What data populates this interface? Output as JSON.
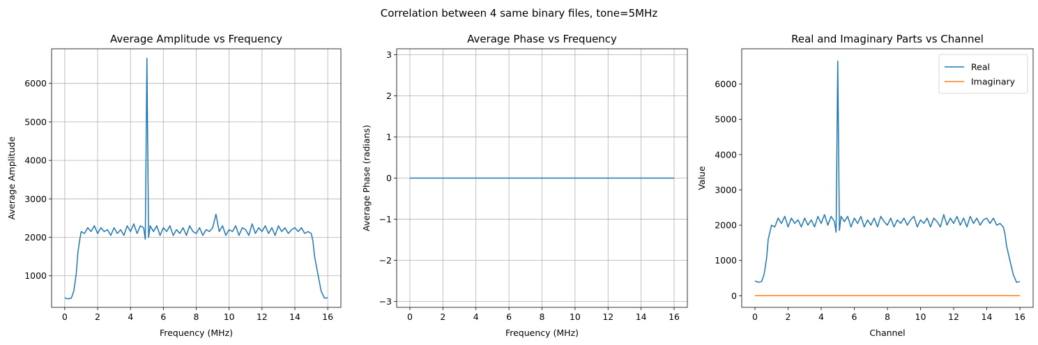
{
  "suptitle": "Correlation between 4 same binary files, tone=5MHz",
  "chart_data": [
    {
      "type": "line",
      "title": "Average Amplitude vs Frequency",
      "xlabel": "Frequency (MHz)",
      "ylabel": "Average Amplitude",
      "xlim": [
        -0.8,
        16.8
      ],
      "ylim": [
        180,
        6900
      ],
      "xticks": [
        0,
        2,
        4,
        6,
        8,
        10,
        12,
        14,
        16
      ],
      "yticks": [
        1000,
        2000,
        3000,
        4000,
        5000,
        6000
      ],
      "grid": true,
      "series": [
        {
          "color": "#1f77b4",
          "x": [
            0.0,
            0.2,
            0.4,
            0.55,
            0.7,
            0.8,
            0.9,
            1.0,
            1.2,
            1.4,
            1.6,
            1.8,
            2.0,
            2.2,
            2.4,
            2.6,
            2.8,
            3.0,
            3.2,
            3.4,
            3.6,
            3.8,
            4.0,
            4.2,
            4.4,
            4.6,
            4.8,
            4.9,
            5.0,
            5.1,
            5.2,
            5.4,
            5.6,
            5.8,
            6.0,
            6.2,
            6.4,
            6.6,
            6.8,
            7.0,
            7.2,
            7.4,
            7.6,
            7.8,
            8.0,
            8.2,
            8.4,
            8.6,
            8.8,
            9.0,
            9.2,
            9.4,
            9.6,
            9.8,
            10.0,
            10.2,
            10.4,
            10.6,
            10.8,
            11.0,
            11.2,
            11.4,
            11.6,
            11.8,
            12.0,
            12.2,
            12.4,
            12.6,
            12.8,
            13.0,
            13.2,
            13.4,
            13.6,
            13.8,
            14.0,
            14.2,
            14.4,
            14.6,
            14.8,
            15.0,
            15.1,
            15.2,
            15.4,
            15.6,
            15.8,
            16.0
          ],
          "y": [
            430,
            400,
            420,
            600,
            1050,
            1600,
            1900,
            2150,
            2100,
            2250,
            2150,
            2300,
            2100,
            2250,
            2150,
            2200,
            2050,
            2250,
            2100,
            2200,
            2050,
            2300,
            2150,
            2350,
            2100,
            2300,
            2250,
            1950,
            6650,
            2000,
            2300,
            2150,
            2300,
            2050,
            2250,
            2150,
            2300,
            2050,
            2200,
            2100,
            2250,
            2050,
            2300,
            2150,
            2100,
            2250,
            2050,
            2200,
            2150,
            2250,
            2600,
            2150,
            2300,
            2050,
            2200,
            2150,
            2300,
            2050,
            2250,
            2200,
            2050,
            2350,
            2100,
            2250,
            2150,
            2300,
            2100,
            2250,
            2050,
            2300,
            2150,
            2250,
            2100,
            2200,
            2250,
            2150,
            2250,
            2100,
            2150,
            2100,
            1900,
            1500,
            1050,
            600,
            420,
            430
          ]
        }
      ]
    },
    {
      "type": "line",
      "title": "Average Phase vs Frequency",
      "xlabel": "Frequency (MHz)",
      "ylabel": "Average Phase (radians)",
      "xlim": [
        -0.8,
        16.8
      ],
      "ylim": [
        -3.1416,
        3.1416
      ],
      "xticks": [
        0,
        2,
        4,
        6,
        8,
        10,
        12,
        14,
        16
      ],
      "yticks": [
        -3,
        -2,
        -1,
        0,
        1,
        2,
        3
      ],
      "ytick_labels": [
        "−3",
        "−2",
        "−1",
        "0",
        "1",
        "2",
        "3"
      ],
      "grid": true,
      "series": [
        {
          "color": "#1f77b4",
          "x": [
            0,
            16
          ],
          "y": [
            0,
            0
          ]
        }
      ]
    },
    {
      "type": "line",
      "title": "Real and Imaginary Parts vs Channel",
      "xlabel": "Channel",
      "ylabel": "Value",
      "xlim": [
        -0.8,
        16.8
      ],
      "ylim": [
        -330,
        7000
      ],
      "xticks": [
        0,
        2,
        4,
        6,
        8,
        10,
        12,
        14,
        16
      ],
      "yticks": [
        0,
        1000,
        2000,
        3000,
        4000,
        5000,
        6000
      ],
      "grid": false,
      "legend": "top-right",
      "series": [
        {
          "name": "Real",
          "color": "#1f77b4",
          "x": [
            0.0,
            0.2,
            0.4,
            0.55,
            0.7,
            0.8,
            0.9,
            1.0,
            1.2,
            1.4,
            1.6,
            1.8,
            2.0,
            2.2,
            2.4,
            2.6,
            2.8,
            3.0,
            3.2,
            3.4,
            3.6,
            3.8,
            4.0,
            4.2,
            4.4,
            4.6,
            4.8,
            4.9,
            5.0,
            5.1,
            5.2,
            5.4,
            5.6,
            5.8,
            6.0,
            6.2,
            6.4,
            6.6,
            6.8,
            7.0,
            7.2,
            7.4,
            7.6,
            7.8,
            8.0,
            8.2,
            8.4,
            8.6,
            8.8,
            9.0,
            9.2,
            9.4,
            9.6,
            9.8,
            10.0,
            10.2,
            10.4,
            10.6,
            10.8,
            11.0,
            11.2,
            11.4,
            11.6,
            11.8,
            12.0,
            12.2,
            12.4,
            12.6,
            12.8,
            13.0,
            13.2,
            13.4,
            13.6,
            13.8,
            14.0,
            14.2,
            14.4,
            14.6,
            14.8,
            15.0,
            15.1,
            15.2,
            15.4,
            15.6,
            15.8,
            16.0
          ],
          "y": [
            420,
            380,
            400,
            600,
            1050,
            1600,
            1800,
            2000,
            1950,
            2200,
            2050,
            2250,
            1950,
            2200,
            2050,
            2150,
            1950,
            2200,
            2000,
            2150,
            1950,
            2250,
            2050,
            2300,
            2000,
            2250,
            2100,
            1800,
            6650,
            1850,
            2250,
            2100,
            2250,
            1950,
            2200,
            2050,
            2250,
            1950,
            2150,
            2000,
            2200,
            1950,
            2250,
            2100,
            2000,
            2200,
            1950,
            2150,
            2050,
            2200,
            2000,
            2150,
            2250,
            1950,
            2150,
            2050,
            2200,
            1950,
            2200,
            2100,
            1950,
            2300,
            2000,
            2200,
            2050,
            2250,
            2000,
            2200,
            1950,
            2250,
            2050,
            2200,
            2000,
            2150,
            2200,
            2050,
            2200,
            2000,
            2050,
            1950,
            1750,
            1400,
            1000,
            600,
            380,
            400
          ]
        },
        {
          "name": "Imaginary",
          "color": "#ff7f0e",
          "x": [
            0,
            16
          ],
          "y": [
            0,
            0
          ]
        }
      ]
    }
  ]
}
